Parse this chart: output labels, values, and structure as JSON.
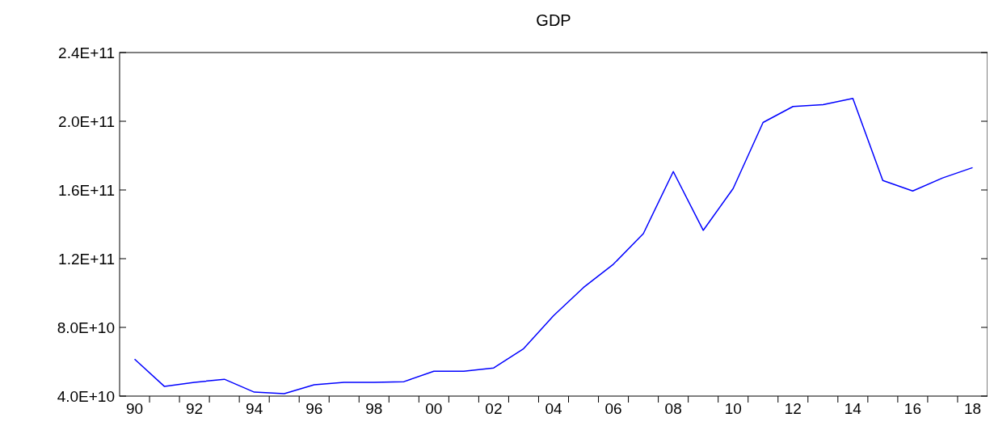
{
  "chart_data": {
    "type": "line",
    "title": "GDP",
    "categories": [
      "90",
      null,
      "92",
      null,
      "94",
      null,
      "96",
      null,
      "98",
      null,
      "00",
      null,
      "02",
      null,
      "04",
      null,
      "06",
      null,
      "08",
      null,
      "10",
      null,
      "12",
      null,
      "14",
      null,
      "16",
      null,
      "18"
    ],
    "series": [
      {
        "color": "#0000ff",
        "values": [
          61500000000.0,
          45600000000.0,
          48000000000.0,
          49800000000.0,
          42300000000.0,
          41400000000.0,
          46600000000.0,
          48000000000.0,
          48000000000.0,
          48400000000.0,
          54500000000.0,
          54500000000.0,
          56400000000.0,
          67600000000.0,
          86800000000.0,
          103200000000.0,
          116800000000.0,
          134600000000.0,
          170700000000.0,
          136500000000.0,
          160800000000.0,
          199300000000.0,
          208600000000.0,
          209600000000.0,
          213300000000.0,
          165500000000.0,
          159400000000.0,
          167000000000.0,
          173000000000.0
        ]
      }
    ],
    "ylim": [
      40000000000.0,
      240000000000.0
    ],
    "yticks": [
      {
        "value": 40000000000.0,
        "label": "4.0E+10"
      },
      {
        "value": 80000000000.0,
        "label": "8.0E+10"
      },
      {
        "value": 120000000000.0,
        "label": "1.2E+11"
      },
      {
        "value": 160000000000.0,
        "label": "1.6E+11"
      },
      {
        "value": 200000000000.0,
        "label": "2.0E+11"
      },
      {
        "value": 240000000000.0,
        "label": "2.4E+11"
      }
    ],
    "grid": false,
    "line_style": "solid"
  }
}
